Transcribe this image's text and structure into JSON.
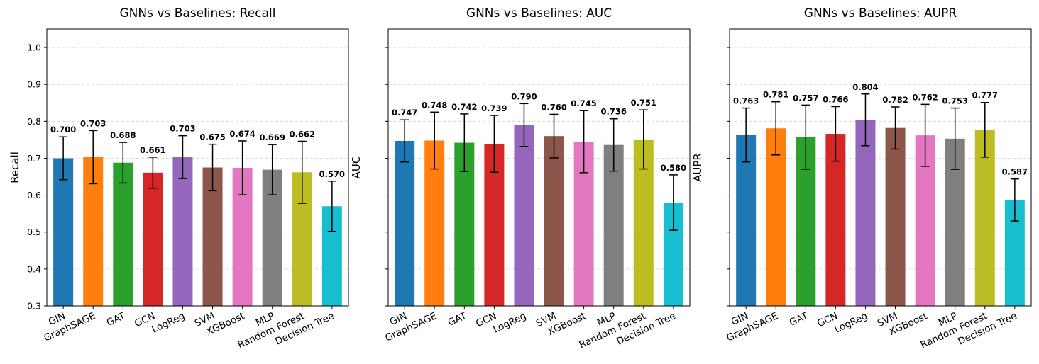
{
  "chart_data": [
    {
      "type": "bar",
      "title": "GNNs vs Baselines: Recall",
      "xlabel": "",
      "ylabel": "Recall",
      "ylim": [
        0.3,
        1.05
      ],
      "yticks": [
        "0.3",
        "0.4",
        "0.5",
        "0.6",
        "0.7",
        "0.8",
        "0.9",
        "1.0"
      ],
      "grid": "y-dashed",
      "categories": [
        "GIN",
        "GraphSAGE",
        "GAT",
        "GCN",
        "LogReg",
        "SVM",
        "XGBoost",
        "MLP",
        "Random Forest",
        "Decision Tree"
      ],
      "values": [
        0.7,
        0.703,
        0.688,
        0.661,
        0.703,
        0.675,
        0.674,
        0.669,
        0.662,
        0.57
      ],
      "value_labels": [
        "0.700",
        "0.703",
        "0.688",
        "0.661",
        "0.703",
        "0.675",
        "0.674",
        "0.669",
        "0.662",
        "0.570"
      ],
      "error": [
        0.058,
        0.072,
        0.055,
        0.042,
        0.058,
        0.063,
        0.073,
        0.068,
        0.084,
        0.068
      ]
    },
    {
      "type": "bar",
      "title": "GNNs vs Baselines: AUC",
      "xlabel": "",
      "ylabel": "AUC",
      "ylim": [
        0.3,
        1.05
      ],
      "grid": "y-dashed",
      "categories": [
        "GIN",
        "GraphSAGE",
        "GAT",
        "GCN",
        "LogReg",
        "SVM",
        "XGBoost",
        "MLP",
        "Random Forest",
        "Decision Tree"
      ],
      "values": [
        0.747,
        0.748,
        0.742,
        0.739,
        0.79,
        0.76,
        0.745,
        0.736,
        0.751,
        0.58
      ],
      "value_labels": [
        "0.747",
        "0.748",
        "0.742",
        "0.739",
        "0.790",
        "0.760",
        "0.745",
        "0.736",
        "0.751",
        "0.580"
      ],
      "error": [
        0.057,
        0.077,
        0.078,
        0.077,
        0.058,
        0.059,
        0.084,
        0.071,
        0.08,
        0.075
      ]
    },
    {
      "type": "bar",
      "title": "GNNs vs Baselines: AUPR",
      "xlabel": "",
      "ylabel": "AUPR",
      "ylim": [
        0.3,
        1.05
      ],
      "grid": "y-dashed",
      "categories": [
        "GIN",
        "GraphSAGE",
        "GAT",
        "GCN",
        "LogReg",
        "SVM",
        "XGBoost",
        "MLP",
        "Random Forest",
        "Decision Tree"
      ],
      "values": [
        0.763,
        0.781,
        0.757,
        0.766,
        0.804,
        0.782,
        0.762,
        0.753,
        0.777,
        0.587
      ],
      "value_labels": [
        "0.763",
        "0.781",
        "0.757",
        "0.766",
        "0.804",
        "0.782",
        "0.762",
        "0.753",
        "0.777",
        "0.587"
      ],
      "error": [
        0.073,
        0.072,
        0.087,
        0.074,
        0.07,
        0.057,
        0.084,
        0.083,
        0.074,
        0.057
      ]
    }
  ],
  "colors": [
    "#1f77b4",
    "#ff7f0e",
    "#2ca02c",
    "#d62728",
    "#9467bd",
    "#8c564b",
    "#e377c2",
    "#7f7f7f",
    "#bcbd22",
    "#17becf"
  ]
}
